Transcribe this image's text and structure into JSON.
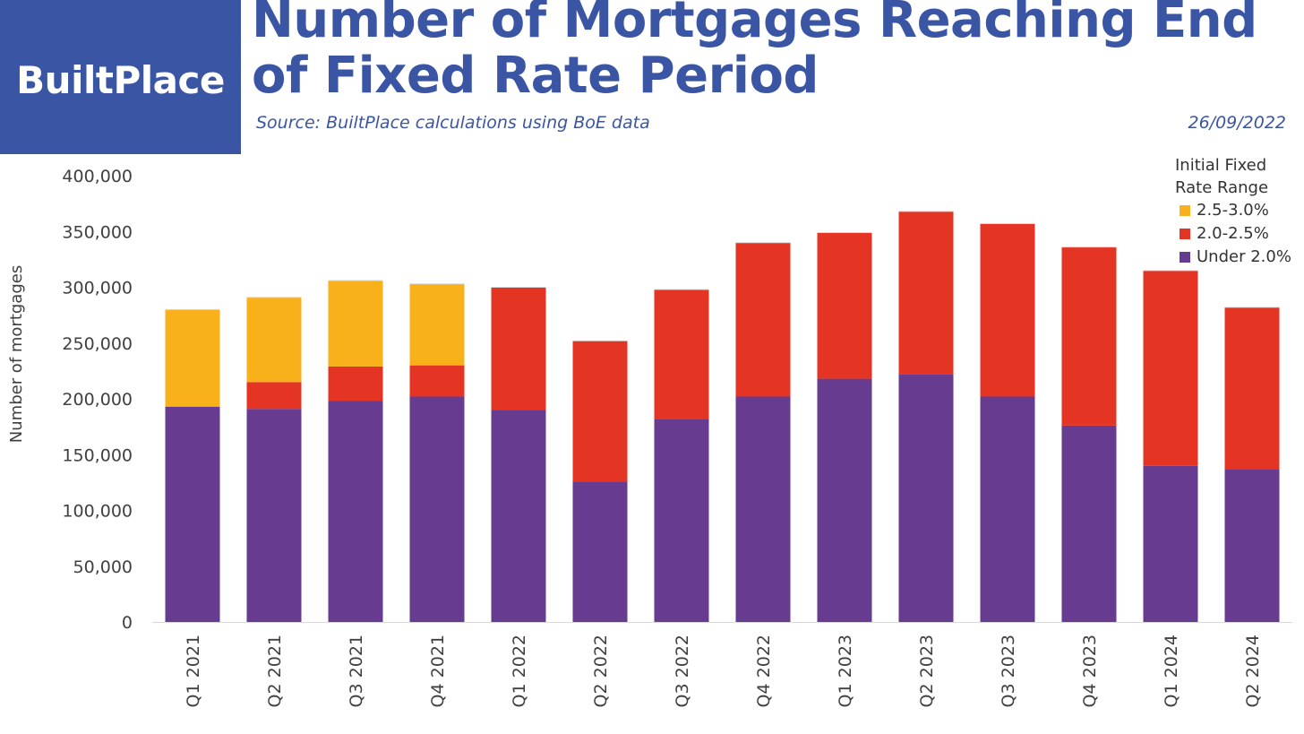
{
  "logo": {
    "text": "BuiltPlace",
    "bg_color": "#3b55a5"
  },
  "header": {
    "title": "Number of Mortgages Reaching End of Fixed Rate Period",
    "source": "Source: BuiltPlace calculations using BoE data",
    "date": "26/09/2022",
    "color": "#3b55a5"
  },
  "chart_data": {
    "type": "bar",
    "stacked": true,
    "title": "Number of Mortgages Reaching End of Fixed Rate Period",
    "xlabel": "",
    "ylabel": "Number of mortgages",
    "ylim": [
      0,
      400000
    ],
    "yticks": [
      "0",
      "50,000",
      "100,000",
      "150,000",
      "200,000",
      "250,000",
      "300,000",
      "350,000",
      "400,000"
    ],
    "ytick_values": [
      0,
      50000,
      100000,
      150000,
      200000,
      250000,
      300000,
      350000,
      400000
    ],
    "grid": false,
    "legend_title": "Initial Fixed Rate Range",
    "legend_title_lines": [
      "Initial Fixed",
      "Rate Range"
    ],
    "legend_position": "top-right",
    "categories": [
      "Q1 2021",
      "Q2 2021",
      "Q3 2021",
      "Q4 2021",
      "Q1 2022",
      "Q2 2022",
      "Q3 2022",
      "Q4 2022",
      "Q1 2023",
      "Q2 2023",
      "Q3 2023",
      "Q4 2023",
      "Q1 2024",
      "Q2 2024"
    ],
    "series": [
      {
        "name": "Under 2.0%",
        "color": "#673b8f",
        "values": [
          193000,
          191000,
          198000,
          202000,
          190000,
          126000,
          182000,
          202000,
          218000,
          222000,
          202000,
          176000,
          140000,
          137000
        ]
      },
      {
        "name": "2.0-2.5%",
        "color": "#e33424",
        "values": [
          0,
          24000,
          31000,
          28000,
          110000,
          126000,
          116000,
          138000,
          131000,
          146000,
          155000,
          160000,
          175000,
          145000
        ]
      },
      {
        "name": "2.5-3.0%",
        "color": "#f8b11b",
        "values": [
          87000,
          76000,
          77000,
          73000,
          0,
          0,
          0,
          0,
          0,
          0,
          0,
          0,
          0,
          0
        ]
      }
    ],
    "legend_order": [
      "2.5-3.0%",
      "2.0-2.5%",
      "Under 2.0%"
    ]
  }
}
